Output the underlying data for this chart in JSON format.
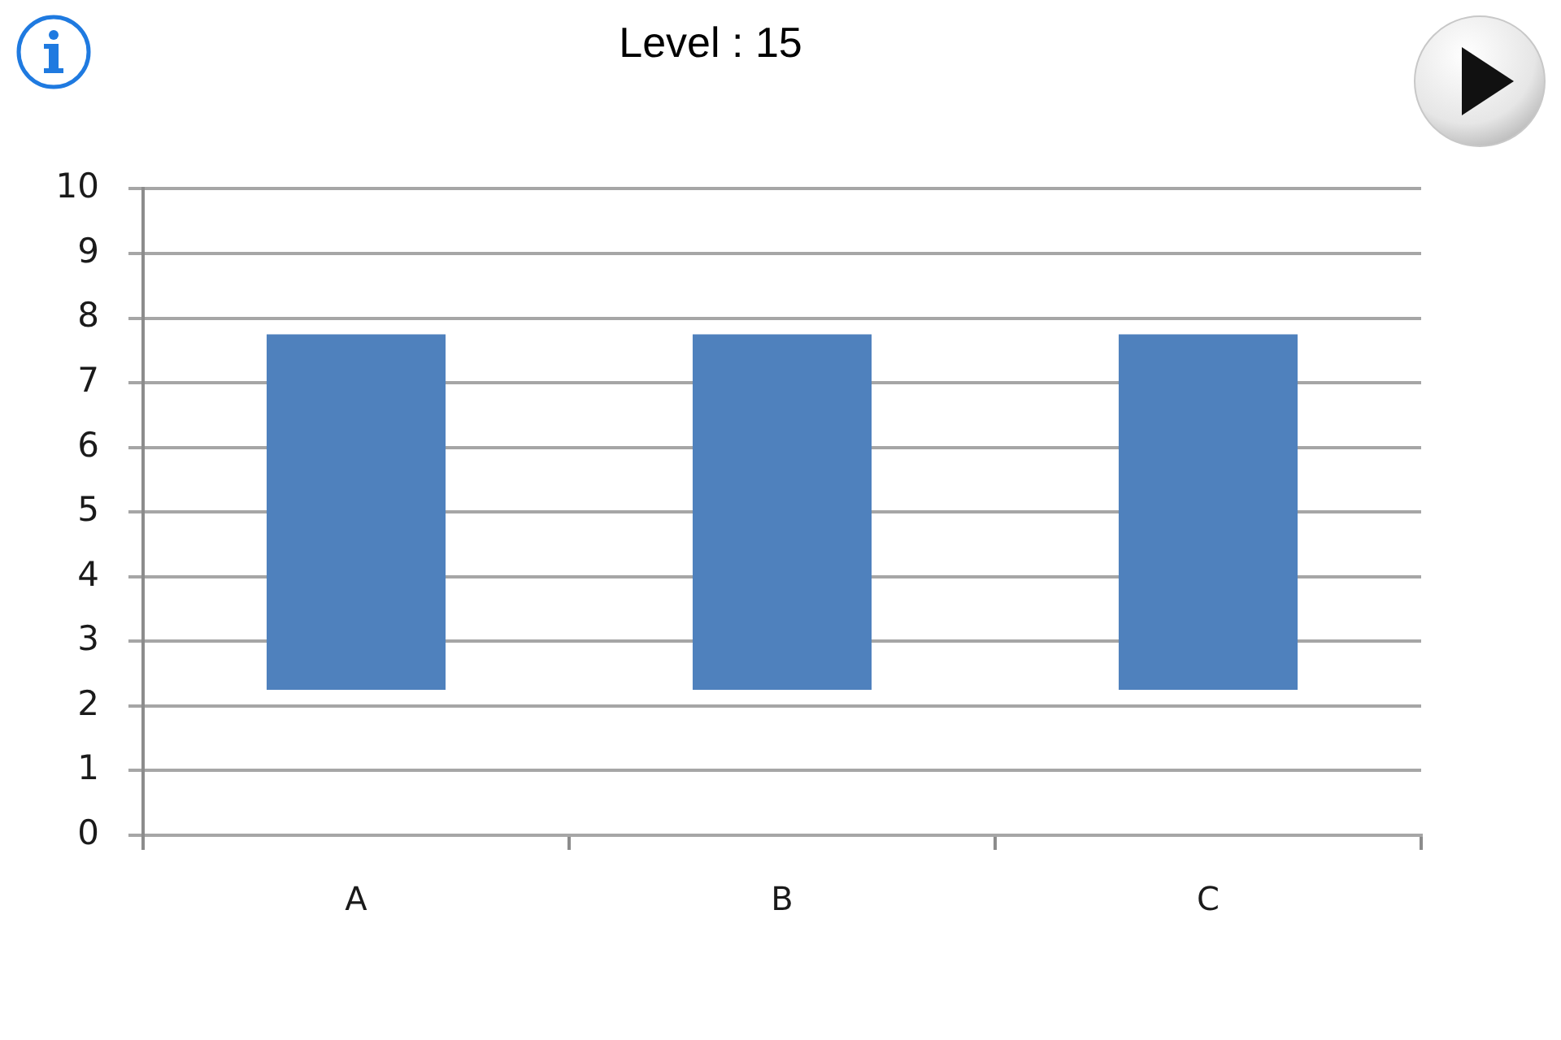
{
  "chart_data": {
    "type": "bar",
    "title": "Level : 15",
    "categories": [
      "A",
      "B",
      "C"
    ],
    "values": [
      5.5,
      5.5,
      5.5
    ],
    "base": [
      2.25,
      2.25,
      2.25
    ],
    "color": "#4f81bd",
    "ylim": [
      0,
      10
    ],
    "yticks": [
      0,
      1,
      2,
      3,
      4,
      5,
      6,
      7,
      8,
      9,
      10
    ],
    "grid": "y"
  }
}
